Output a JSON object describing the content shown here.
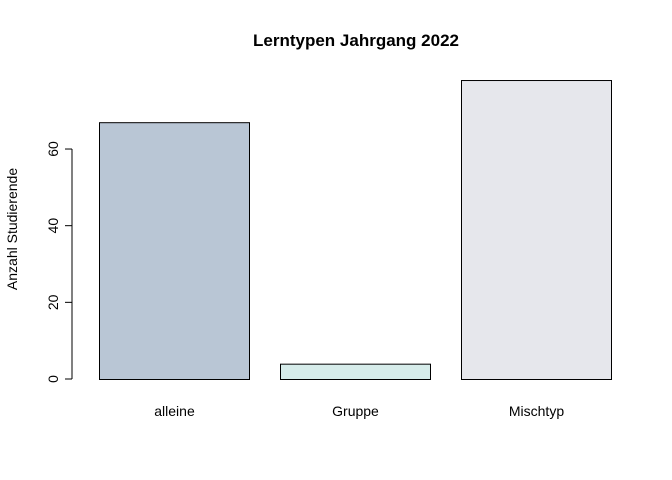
{
  "chart_data": {
    "type": "bar",
    "title": "Lerntypen Jahrgang 2022",
    "xlabel": "",
    "ylabel": "Anzahl Studierende",
    "categories": [
      "alleine",
      "Gruppe",
      "Mischtyp"
    ],
    "values": [
      67,
      4,
      78
    ],
    "colors": [
      "#b9c6d5",
      "#d6ecea",
      "#e6e7ec"
    ],
    "yticks": [
      0,
      20,
      40,
      60
    ],
    "ylim": [
      0,
      78
    ],
    "grid": false,
    "legend": "none"
  }
}
